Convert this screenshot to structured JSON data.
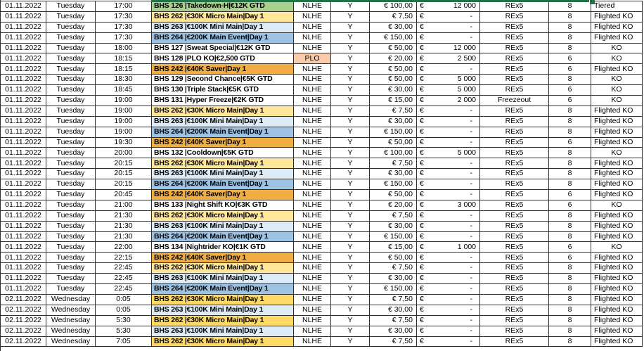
{
  "colors": {
    "green": "#A9D08E",
    "yellow": "#FFE699",
    "gold": "#FFD966",
    "lightblue": "#DDEBF7",
    "blue": "#9CC2E4",
    "orange": "#EFAD43",
    "salmon": "#F8CBAD",
    "selection": "#217346"
  },
  "table": {
    "rows": [
      {
        "date": "01.11.2022",
        "day": "Tuesday",
        "time": "17:00",
        "event": "BHS 126 |Takedown-H|€12K GTD",
        "event_color": "green",
        "game": "NLHE",
        "game_color": "",
        "reg": "Y",
        "buyin": "€ 100,00",
        "cur": "€",
        "gtd": "12 000",
        "re": "REx5",
        "seats": "8",
        "type": "Tiered"
      },
      {
        "date": "01.11.2022",
        "day": "Tuesday",
        "time": "17:30",
        "event": "BHS 262 |€30K Micro Main|Day 1",
        "event_color": "yellow",
        "game": "NLHE",
        "game_color": "",
        "reg": "Y",
        "buyin": "€ 7,50",
        "cur": "€",
        "gtd": "-",
        "re": "REx5",
        "seats": "8",
        "type": "Flighted KO"
      },
      {
        "date": "01.11.2022",
        "day": "Tuesday",
        "time": "17:30",
        "event": "BHS 263 |€100K Mini Main|Day 1",
        "event_color": "lightblue",
        "game": "NLHE",
        "game_color": "",
        "reg": "Y",
        "buyin": "€ 30,00",
        "cur": "€",
        "gtd": "-",
        "re": "REx5",
        "seats": "8",
        "type": "Flighted KO"
      },
      {
        "date": "01.11.2022",
        "day": "Tuesday",
        "time": "17:30",
        "event": "BHS 264 |€200K Main Event|Day 1",
        "event_color": "blue",
        "game": "NLHE",
        "game_color": "",
        "reg": "Y",
        "buyin": "€ 150,00",
        "cur": "€",
        "gtd": "-",
        "re": "REx5",
        "seats": "8",
        "type": "Flighted KO"
      },
      {
        "date": "01.11.2022",
        "day": "Tuesday",
        "time": "18:00",
        "event": "BHS 127 |Sweat Special|€12K GTD",
        "event_color": "",
        "game": "NLHE",
        "game_color": "",
        "reg": "Y",
        "buyin": "€ 50,00",
        "cur": "€",
        "gtd": "12 000",
        "re": "REx5",
        "seats": "8",
        "type": "KO"
      },
      {
        "date": "01.11.2022",
        "day": "Tuesday",
        "time": "18:15",
        "event": "BHS 128 |PLO KO|€2,500 GTD",
        "event_color": "",
        "game": "PLO",
        "game_color": "salmon",
        "reg": "Y",
        "buyin": "€ 20,00",
        "cur": "€",
        "gtd": "2 500",
        "re": "REx5",
        "seats": "6",
        "type": "KO"
      },
      {
        "date": "01.11.2022",
        "day": "Tuesday",
        "time": "18:15",
        "event": "BHS 242 |€40K Saver|Day 1",
        "event_color": "orange",
        "game": "NLHE",
        "game_color": "",
        "reg": "Y",
        "buyin": "€ 50,00",
        "cur": "€",
        "gtd": "-",
        "re": "REx5",
        "seats": "6",
        "type": "Flighted KO"
      },
      {
        "date": "01.11.2022",
        "day": "Tuesday",
        "time": "18:30",
        "event": "BHS 129 |Second Chance|€5K GTD",
        "event_color": "",
        "game": "NLHE",
        "game_color": "",
        "reg": "Y",
        "buyin": "€ 50,00",
        "cur": "€",
        "gtd": "5 000",
        "re": "REx5",
        "seats": "8",
        "type": "KO"
      },
      {
        "date": "01.11.2022",
        "day": "Tuesday",
        "time": "18:45",
        "event": "BHS 130 |Triple Stack|€5K GTD",
        "event_color": "",
        "game": "NLHE",
        "game_color": "",
        "reg": "Y",
        "buyin": "€ 30,00",
        "cur": "€",
        "gtd": "5 000",
        "re": "REx5",
        "seats": "6",
        "type": "KO"
      },
      {
        "date": "01.11.2022",
        "day": "Tuesday",
        "time": "19:00",
        "event": "BHS 131 |Hyper Freeze|€2K GTD",
        "event_color": "",
        "game": "NLHE",
        "game_color": "",
        "reg": "Y",
        "buyin": "€ 15,00",
        "cur": "€",
        "gtd": "2 000",
        "re": "Freezeout",
        "seats": "6",
        "type": "KO"
      },
      {
        "date": "01.11.2022",
        "day": "Tuesday",
        "time": "19:00",
        "event": "BHS 262 |€30K Micro Main|Day 1",
        "event_color": "yellow",
        "game": "NLHE",
        "game_color": "",
        "reg": "Y",
        "buyin": "€ 7,50",
        "cur": "€",
        "gtd": "-",
        "re": "REx5",
        "seats": "8",
        "type": "Flighted KO"
      },
      {
        "date": "01.11.2022",
        "day": "Tuesday",
        "time": "19:00",
        "event": "BHS 263 |€100K Mini Main|Day 1",
        "event_color": "lightblue",
        "game": "NLHE",
        "game_color": "",
        "reg": "Y",
        "buyin": "€ 30,00",
        "cur": "€",
        "gtd": "-",
        "re": "REx5",
        "seats": "8",
        "type": "Flighted KO"
      },
      {
        "date": "01.11.2022",
        "day": "Tuesday",
        "time": "19:00",
        "event": "BHS 264 |€200K Main Event|Day 1",
        "event_color": "blue",
        "game": "NLHE",
        "game_color": "",
        "reg": "Y",
        "buyin": "€ 150,00",
        "cur": "€",
        "gtd": "-",
        "re": "REx5",
        "seats": "8",
        "type": "Flighted KO"
      },
      {
        "date": "01.11.2022",
        "day": "Tuesday",
        "time": "19:30",
        "event": "BHS 242 |€40K Saver|Day 1",
        "event_color": "orange",
        "game": "NLHE",
        "game_color": "",
        "reg": "Y",
        "buyin": "€ 50,00",
        "cur": "€",
        "gtd": "-",
        "re": "REx5",
        "seats": "6",
        "type": "Flighted KO"
      },
      {
        "date": "01.11.2022",
        "day": "Tuesday",
        "time": "20:00",
        "event": "BHS 132 |Cooldown|€5K GTD",
        "event_color": "",
        "game": "NLHE",
        "game_color": "",
        "reg": "Y",
        "buyin": "€ 100,00",
        "cur": "€",
        "gtd": "5 000",
        "re": "REx5",
        "seats": "8",
        "type": "KO"
      },
      {
        "date": "01.11.2022",
        "day": "Tuesday",
        "time": "20:15",
        "event": "BHS 262 |€30K Micro Main|Day 1",
        "event_color": "yellow",
        "game": "NLHE",
        "game_color": "",
        "reg": "Y",
        "buyin": "€ 7,50",
        "cur": "€",
        "gtd": "-",
        "re": "REx5",
        "seats": "8",
        "type": "Flighted KO"
      },
      {
        "date": "01.11.2022",
        "day": "Tuesday",
        "time": "20:15",
        "event": "BHS 263 |€100K Mini Main|Day 1",
        "event_color": "lightblue",
        "game": "NLHE",
        "game_color": "",
        "reg": "Y",
        "buyin": "€ 30,00",
        "cur": "€",
        "gtd": "-",
        "re": "REx5",
        "seats": "8",
        "type": "Flighted KO"
      },
      {
        "date": "01.11.2022",
        "day": "Tuesday",
        "time": "20:15",
        "event": "BHS 264 |€200K Main Event|Day 1",
        "event_color": "blue",
        "game": "NLHE",
        "game_color": "",
        "reg": "Y",
        "buyin": "€ 150,00",
        "cur": "€",
        "gtd": "-",
        "re": "REx5",
        "seats": "8",
        "type": "Flighted KO"
      },
      {
        "date": "01.11.2022",
        "day": "Tuesday",
        "time": "20:45",
        "event": "BHS 242 |€40K Saver|Day 1",
        "event_color": "orange",
        "game": "NLHE",
        "game_color": "",
        "reg": "Y",
        "buyin": "€ 50,00",
        "cur": "€",
        "gtd": "-",
        "re": "REx5",
        "seats": "6",
        "type": "Flighted KO"
      },
      {
        "date": "01.11.2022",
        "day": "Tuesday",
        "time": "21:00",
        "event": "BHS 133 |Night Shift KO|€3K GTD",
        "event_color": "",
        "game": "NLHE",
        "game_color": "",
        "reg": "Y",
        "buyin": "€ 20,00",
        "cur": "€",
        "gtd": "3 000",
        "re": "REx5",
        "seats": "6",
        "type": "KO"
      },
      {
        "date": "01.11.2022",
        "day": "Tuesday",
        "time": "21:30",
        "event": "BHS 262 |€30K Micro Main|Day 1",
        "event_color": "yellow",
        "game": "NLHE",
        "game_color": "",
        "reg": "Y",
        "buyin": "€ 7,50",
        "cur": "€",
        "gtd": "-",
        "re": "REx5",
        "seats": "8",
        "type": "Flighted KO"
      },
      {
        "date": "01.11.2022",
        "day": "Tuesday",
        "time": "21:30",
        "event": "BHS 263 |€100K Mini Main|Day 1",
        "event_color": "lightblue",
        "game": "NLHE",
        "game_color": "",
        "reg": "Y",
        "buyin": "€ 30,00",
        "cur": "€",
        "gtd": "-",
        "re": "REx5",
        "seats": "8",
        "type": "Flighted KO"
      },
      {
        "date": "01.11.2022",
        "day": "Tuesday",
        "time": "21:30",
        "event": "BHS 264 |€200K Main Event|Day 1",
        "event_color": "blue",
        "game": "NLHE",
        "game_color": "",
        "reg": "Y",
        "buyin": "€ 150,00",
        "cur": "€",
        "gtd": "-",
        "re": "REx5",
        "seats": "8",
        "type": "Flighted KO"
      },
      {
        "date": "01.11.2022",
        "day": "Tuesday",
        "time": "22:00",
        "event": "BHS 134 |Nightrider KO|€1K GTD",
        "event_color": "",
        "game": "NLHE",
        "game_color": "",
        "reg": "Y",
        "buyin": "€ 15,00",
        "cur": "€",
        "gtd": "1 000",
        "re": "REx5",
        "seats": "6",
        "type": "KO"
      },
      {
        "date": "01.11.2022",
        "day": "Tuesday",
        "time": "22:15",
        "event": "BHS 242 |€40K Saver|Day 1",
        "event_color": "orange",
        "game": "NLHE",
        "game_color": "",
        "reg": "Y",
        "buyin": "€ 50,00",
        "cur": "€",
        "gtd": "-",
        "re": "REx5",
        "seats": "6",
        "type": "Flighted KO"
      },
      {
        "date": "01.11.2022",
        "day": "Tuesday",
        "time": "22:45",
        "event": "BHS 262 |€30K Micro Main|Day 1",
        "event_color": "yellow",
        "game": "NLHE",
        "game_color": "",
        "reg": "Y",
        "buyin": "€ 7,50",
        "cur": "€",
        "gtd": "-",
        "re": "REx5",
        "seats": "8",
        "type": "Flighted KO"
      },
      {
        "date": "01.11.2022",
        "day": "Tuesday",
        "time": "22:45",
        "event": "BHS 263 |€100K Mini Main|Day 1",
        "event_color": "lightblue",
        "game": "NLHE",
        "game_color": "",
        "reg": "Y",
        "buyin": "€ 30,00",
        "cur": "€",
        "gtd": "-",
        "re": "REx5",
        "seats": "8",
        "type": "Flighted KO"
      },
      {
        "date": "01.11.2022",
        "day": "Tuesday",
        "time": "22:45",
        "event": "BHS 264 |€200K Main Event|Day 1",
        "event_color": "blue",
        "game": "NLHE",
        "game_color": "",
        "reg": "Y",
        "buyin": "€ 150,00",
        "cur": "€",
        "gtd": "-",
        "re": "REx5",
        "seats": "8",
        "type": "Flighted KO"
      },
      {
        "date": "02.11.2022",
        "day": "Wednesday",
        "time": "0:05",
        "event": "BHS 262 |€30K Micro Main|Day 1",
        "event_color": "gold",
        "game": "NLHE",
        "game_color": "",
        "reg": "Y",
        "buyin": "€ 7,50",
        "cur": "€",
        "gtd": "-",
        "re": "REx5",
        "seats": "8",
        "type": "Flighted KO"
      },
      {
        "date": "02.11.2022",
        "day": "Wednesday",
        "time": "0:05",
        "event": "BHS 263 |€100K Mini Main|Day 1",
        "event_color": "lightblue",
        "game": "NLHE",
        "game_color": "",
        "reg": "Y",
        "buyin": "€ 30,00",
        "cur": "€",
        "gtd": "-",
        "re": "REx5",
        "seats": "8",
        "type": "Flighted KO"
      },
      {
        "date": "02.11.2022",
        "day": "Wednesday",
        "time": "5:30",
        "event": "BHS 262 |€30K Micro Main|Day 1",
        "event_color": "gold",
        "game": "NLHE",
        "game_color": "",
        "reg": "Y",
        "buyin": "€ 7,50",
        "cur": "€",
        "gtd": "-",
        "re": "REx5",
        "seats": "8",
        "type": "Flighted KO"
      },
      {
        "date": "02.11.2022",
        "day": "Wednesday",
        "time": "5:30",
        "event": "BHS 263 |€100K Mini Main|Day 1",
        "event_color": "lightblue",
        "game": "NLHE",
        "game_color": "",
        "reg": "Y",
        "buyin": "€ 30,00",
        "cur": "€",
        "gtd": "-",
        "re": "REx5",
        "seats": "8",
        "type": "Flighted KO"
      },
      {
        "date": "02.11.2022",
        "day": "Wednesday",
        "time": "7:05",
        "event": "BHS 262 |€30K Micro Main|Day 1",
        "event_color": "gold",
        "game": "NLHE",
        "game_color": "",
        "reg": "Y",
        "buyin": "€ 7,50",
        "cur": "€",
        "gtd": "-",
        "re": "REx5",
        "seats": "8",
        "type": "Flighted KO"
      }
    ]
  }
}
